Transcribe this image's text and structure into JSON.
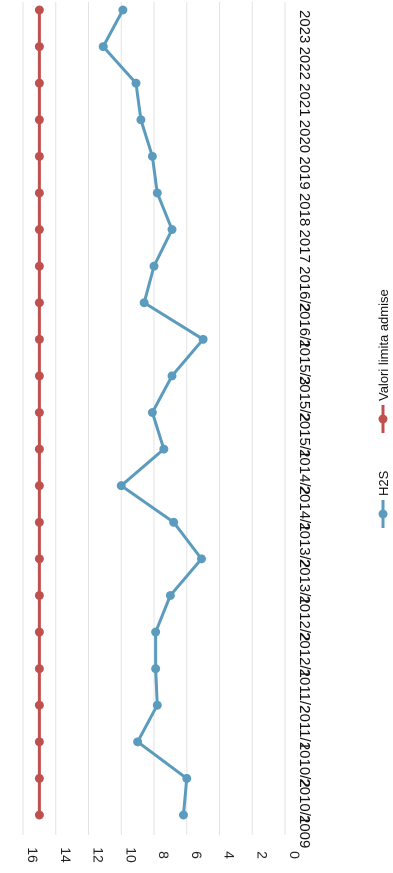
{
  "chart_data": {
    "type": "line",
    "orientation": "rotated-90-clockwise",
    "categories": [
      "2009",
      "2010/1",
      "2010/2",
      "2011/1",
      "2011/2",
      "2012/1",
      "2012/2",
      "2013/1",
      "2013/2",
      "2014/1",
      "2014/2",
      "2015/1",
      "2015/2",
      "2015/3",
      "2016/1",
      "2016/2",
      "2017",
      "2018",
      "2019",
      "2020",
      "2021",
      "2022",
      "2023"
    ],
    "series": [
      {
        "name": "H2S",
        "color": "#5b9bbd",
        "values": [
          6.2,
          6.0,
          9.0,
          7.8,
          7.9,
          7.9,
          7.0,
          5.1,
          6.8,
          10.0,
          7.4,
          8.1,
          6.9,
          5.0,
          8.6,
          8.0,
          6.9,
          7.8,
          8.1,
          8.8,
          9.1,
          11.1,
          9.9
        ]
      },
      {
        "name": "Valori limita admise",
        "color": "#c0504d",
        "values": [
          15,
          15,
          15,
          15,
          15,
          15,
          15,
          15,
          15,
          15,
          15,
          15,
          15,
          15,
          15,
          15,
          15,
          15,
          15,
          15,
          15,
          15,
          15
        ]
      }
    ],
    "yticks": [
      "0",
      "2",
      "4",
      "6",
      "8",
      "10",
      "12",
      "14",
      "16"
    ],
    "ylim": [
      0,
      16
    ],
    "grid": true,
    "legend_position": "bottom"
  }
}
